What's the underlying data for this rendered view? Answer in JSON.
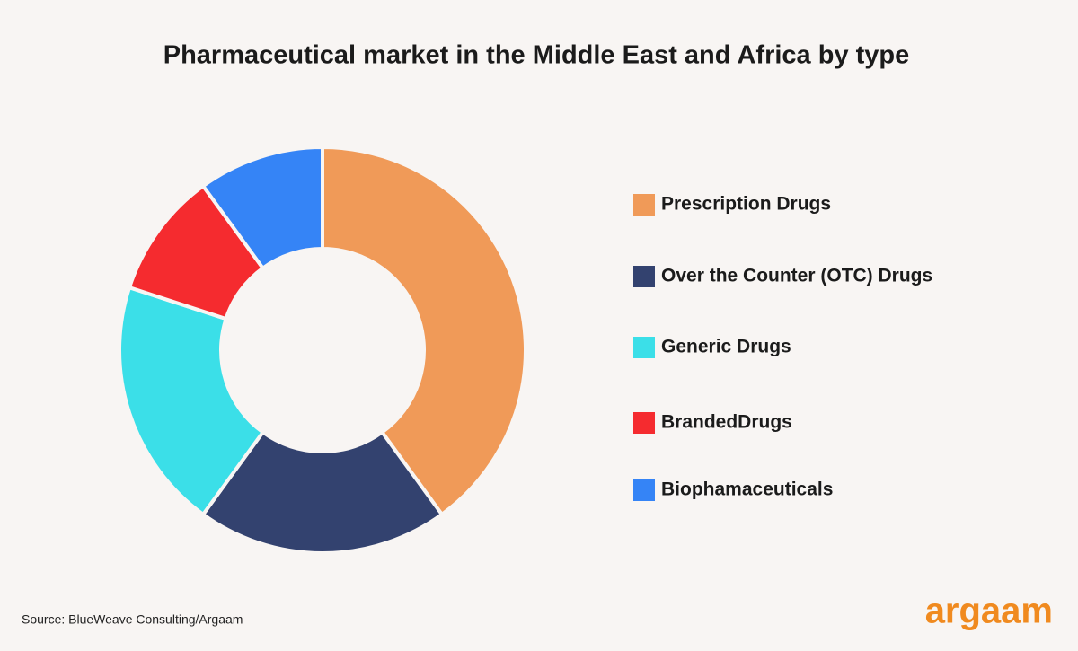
{
  "chart_data": {
    "type": "donut",
    "title": "Pharmaceutical market in the Middle East and Africa by type",
    "categories": [
      "Prescription Drugs",
      "Over the Counter (OTC) Drugs",
      "Generic Drugs",
      "BrandedDrugs",
      "Biophamaceuticals"
    ],
    "values": [
      40,
      20,
      20,
      10,
      10
    ],
    "colors": [
      "#f09a58",
      "#33426f",
      "#3bdfe8",
      "#f52b2f",
      "#3584f6"
    ],
    "legend": "right"
  },
  "source": "Source: BlueWeave Consulting/Argaam",
  "logo": "argaam"
}
